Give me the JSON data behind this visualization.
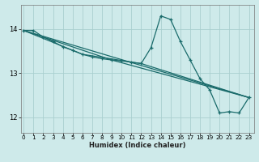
{
  "title": "",
  "xlabel": "Humidex (Indice chaleur)",
  "bg_color": "#ceeaea",
  "grid_color": "#aacfcf",
  "line_color": "#1a6b6b",
  "x_ticks": [
    0,
    1,
    2,
    3,
    4,
    5,
    6,
    7,
    8,
    9,
    10,
    11,
    12,
    13,
    14,
    15,
    16,
    17,
    18,
    19,
    20,
    21,
    22,
    23
  ],
  "y_ticks": [
    12,
    13,
    14
  ],
  "xlim": [
    -0.3,
    23.5
  ],
  "ylim": [
    11.65,
    14.55
  ],
  "main_x": [
    0,
    1,
    2,
    3,
    4,
    5,
    6,
    7,
    8,
    9,
    10,
    11,
    12,
    13,
    14,
    15,
    16,
    17,
    18,
    19,
    20,
    21,
    22,
    23
  ],
  "main_y": [
    13.97,
    13.97,
    13.82,
    13.72,
    13.6,
    13.52,
    13.43,
    13.37,
    13.33,
    13.3,
    13.28,
    13.25,
    13.22,
    13.58,
    14.3,
    14.22,
    13.72,
    13.3,
    12.88,
    12.62,
    12.1,
    12.13,
    12.1,
    12.45
  ],
  "trend1_x": [
    0,
    23
  ],
  "trend1_y": [
    13.97,
    12.45
  ],
  "trend2_x": [
    0,
    9,
    23
  ],
  "trend2_y": [
    13.97,
    13.3,
    12.45
  ],
  "trend3_x": [
    0,
    6,
    12,
    23
  ],
  "trend3_y": [
    13.97,
    13.43,
    13.22,
    12.45
  ]
}
